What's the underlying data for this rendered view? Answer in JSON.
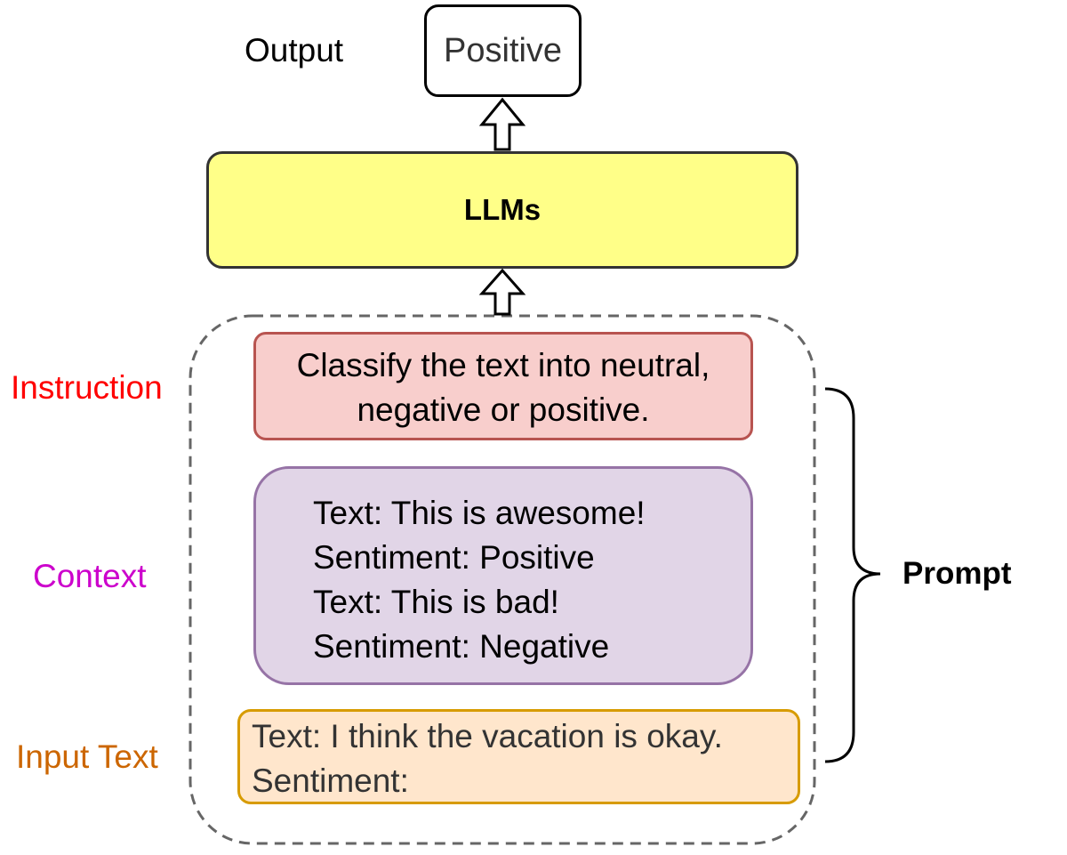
{
  "output": {
    "label": "Output",
    "value": "Positive"
  },
  "model": {
    "label": "LLMs"
  },
  "prompt": {
    "label": "Prompt",
    "instruction": {
      "label": "Instruction",
      "lines": [
        "Classify the text into neutral,",
        "negative or positive."
      ]
    },
    "context": {
      "label": "Context",
      "lines": [
        "Text: This is awesome!",
        "Sentiment: Positive",
        "Text: This is bad!",
        "Sentiment: Negative"
      ]
    },
    "input": {
      "label": "Input Text",
      "lines": [
        "Text: I think the vacation is okay.",
        "Sentiment:"
      ]
    }
  },
  "colors": {
    "instruction_label": "#ff0000",
    "context_label": "#cc00cc",
    "input_label": "#cc6600",
    "llm_fill": "#ffff88",
    "instruction_fill": "#f8cecc",
    "context_fill": "#e1d5e7",
    "input_fill": "#ffe6cc"
  }
}
